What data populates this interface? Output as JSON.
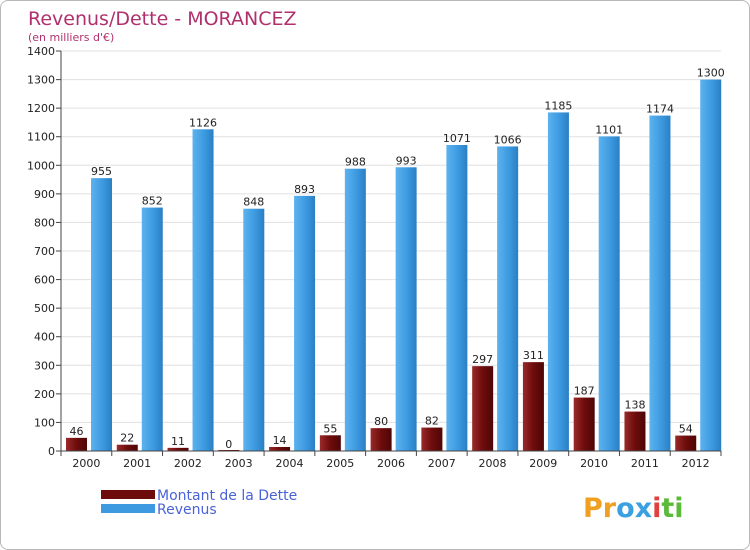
{
  "chart_data": {
    "type": "bar",
    "title": "Revenus/Dette - MORANCEZ",
    "subtitle": "(en milliers d'€)",
    "categories": [
      "2000",
      "2001",
      "2002",
      "2003",
      "2004",
      "2005",
      "2006",
      "2007",
      "2008",
      "2009",
      "2010",
      "2011",
      "2012"
    ],
    "series": [
      {
        "name": "Montant de la Dette",
        "color": "#7a1010",
        "values": [
          46,
          22,
          11,
          0,
          14,
          55,
          80,
          82,
          297,
          311,
          187,
          138,
          54
        ]
      },
      {
        "name": "Revenus",
        "color": "#3d9ae0",
        "values": [
          955,
          852,
          1126,
          848,
          893,
          988,
          993,
          1071,
          1066,
          1185,
          1101,
          1174,
          1300
        ]
      }
    ],
    "ylim": [
      0,
      1400
    ],
    "yticks": [
      0,
      100,
      200,
      300,
      400,
      500,
      600,
      700,
      800,
      900,
      1000,
      1100,
      1200,
      1300,
      1400
    ],
    "grid": true,
    "legend_position": "bottom-left",
    "xlabel": "",
    "ylabel": ""
  },
  "brand": {
    "letters": [
      "P",
      "r",
      "o",
      "x",
      "i",
      "t",
      "i"
    ],
    "colors": [
      "#f0a020",
      "#f0a020",
      "#3aa0e0",
      "#3aa0e0",
      "#e04040",
      "#5aba3a",
      "#5aba3a"
    ]
  }
}
